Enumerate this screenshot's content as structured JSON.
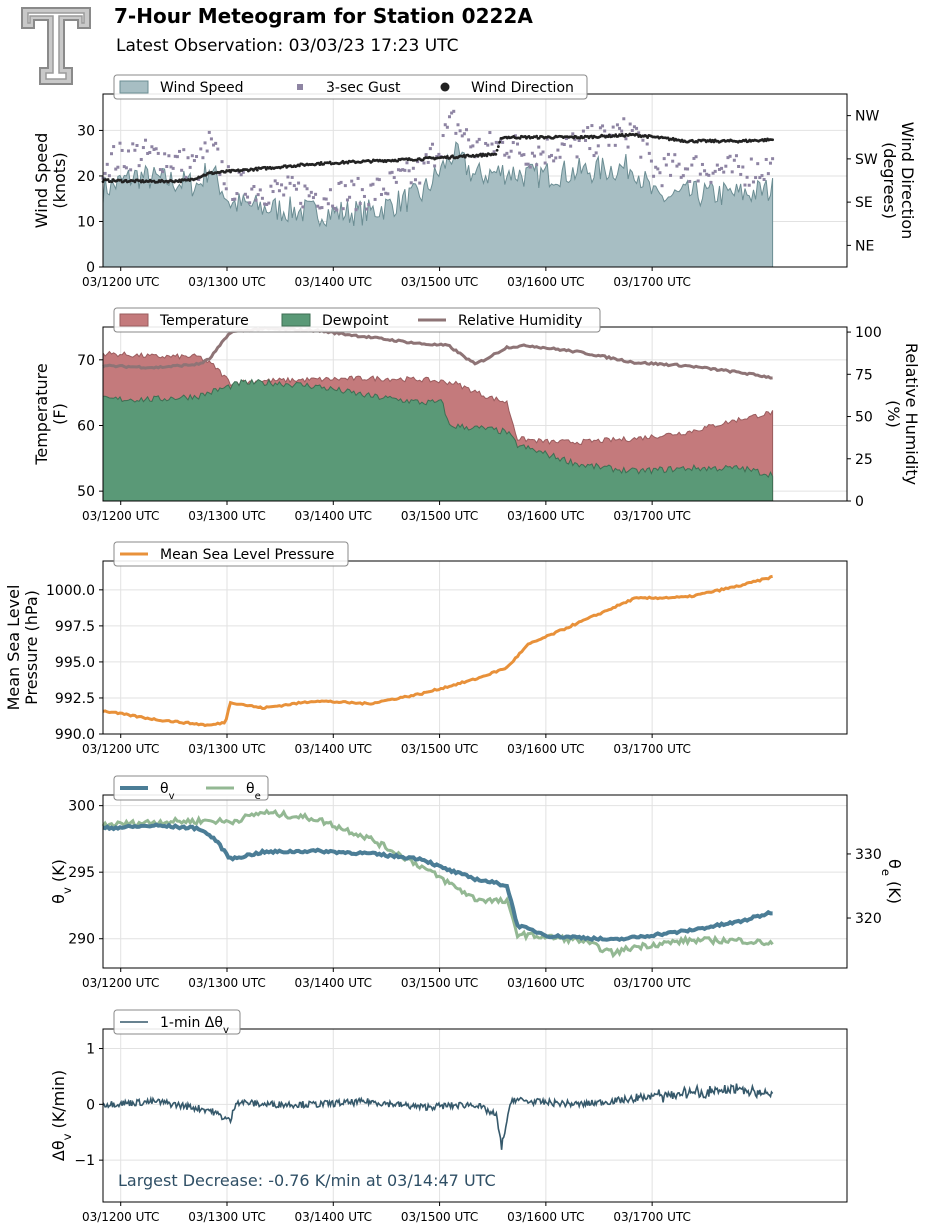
{
  "header": {
    "title": "7-Hour Meteogram for Station 0222A",
    "subtitle": "Latest Observation: 03/03/23 17:23 UTC",
    "logo_icon": "texas-tech-double-t-logo-icon"
  },
  "colors": {
    "wind_speed": "#a7bec3",
    "wind_speed_line": "#6b8d93",
    "gust": "#8e84a3",
    "wind_dir": "#222222",
    "temperature": "#c47a7c",
    "dewpoint": "#5a9977",
    "rh": "#8e7476",
    "pressure": "#e8913a",
    "theta_v": "#4b7d96",
    "theta_e": "#93b893",
    "dtheta": "#36596b",
    "annotation": "#2f4f65"
  },
  "chart_data": [
    {
      "id": "wind",
      "type": "area",
      "x_tick_labels": [
        "03/1200 UTC",
        "03/1300 UTC",
        "03/1400 UTC",
        "03/1500 UTC",
        "03/1600 UTC",
        "03/1700 UTC"
      ],
      "ylabel": "Wind Speed\n(knots)",
      "ylim": [
        0,
        38
      ],
      "yticks": [
        0,
        10,
        20,
        30
      ],
      "y2label": "Wind Direction\n(degrees)",
      "y2_tick_labels": [
        "NE",
        "SE",
        "SW",
        "NW"
      ],
      "y2lim": [
        0,
        360
      ],
      "y2ticks": [
        45,
        135,
        225,
        315
      ],
      "grid": true,
      "legend": [
        "Wind Speed",
        "3-sec Gust",
        "Wind Direction"
      ],
      "series": [
        {
          "name": "Wind Speed",
          "hours": [
            0,
            0.3,
            0.6,
            0.9,
            1.0,
            1.2,
            1.5,
            2.0,
            2.5,
            3.0,
            3.3,
            3.5,
            3.8,
            4.0,
            4.5,
            5.0,
            5.2,
            5.5,
            6.0,
            6.3
          ],
          "values": [
            17,
            20,
            19,
            18,
            22,
            14,
            13,
            12,
            12,
            16,
            25,
            20,
            21,
            20,
            21,
            22,
            15,
            16,
            16,
            17
          ]
        },
        {
          "name": "3-sec Gust",
          "hours": [
            0,
            0.3,
            0.6,
            0.9,
            1.0,
            1.2,
            1.5,
            2.0,
            2.5,
            3.0,
            3.3,
            3.5,
            3.8,
            4.0,
            4.5,
            5.0,
            5.2,
            5.5,
            6.0,
            6.3
          ],
          "values": [
            23,
            25,
            24,
            22,
            27,
            18,
            17,
            16,
            16,
            21,
            32,
            26,
            27,
            25,
            27,
            30,
            21,
            22,
            21,
            22
          ]
        },
        {
          "name": "Wind Direction",
          "hours": [
            0,
            0.5,
            0.8,
            1.0,
            1.5,
            2.0,
            2.5,
            3.0,
            3.5,
            3.7,
            3.75,
            4.0,
            4.5,
            5.0,
            5.5,
            6.0,
            6.3
          ],
          "values": [
            180,
            178,
            180,
            195,
            205,
            215,
            220,
            225,
            232,
            235,
            270,
            270,
            270,
            275,
            262,
            262,
            265
          ]
        }
      ]
    },
    {
      "id": "thermo",
      "type": "area",
      "x_tick_labels": [
        "03/1200 UTC",
        "03/1300 UTC",
        "03/1400 UTC",
        "03/1500 UTC",
        "03/1600 UTC",
        "03/1700 UTC"
      ],
      "ylabel": "Temperature\n(F)",
      "ylim": [
        48.5,
        75
      ],
      "yticks": [
        50,
        60,
        70
      ],
      "y2label": "Relative Humidity\n(%)",
      "y2lim": [
        0,
        103
      ],
      "y2ticks": [
        0,
        25,
        50,
        75,
        100
      ],
      "grid": true,
      "legend": [
        "Temperature",
        "Dewpoint",
        "Relative Humidity"
      ],
      "series": [
        {
          "name": "Temperature",
          "hours": [
            0,
            0.5,
            0.9,
            1.05,
            1.2,
            1.5,
            2.0,
            2.5,
            3.0,
            3.3,
            3.6,
            3.8,
            3.9,
            4.2,
            4.5,
            5.0,
            5.5,
            6.0,
            6.3
          ],
          "values": [
            71,
            70.5,
            70.5,
            69,
            66.5,
            66.8,
            67,
            67.2,
            67,
            66.5,
            64.5,
            63.5,
            58,
            57.5,
            57.5,
            58,
            59,
            61,
            62
          ]
        },
        {
          "name": "Dewpoint",
          "hours": [
            0,
            0.5,
            0.9,
            1.1,
            1.3,
            1.6,
            2.0,
            2.5,
            3.0,
            3.2,
            3.25,
            3.6,
            3.8,
            3.9,
            4.2,
            4.5,
            5.0,
            5.5,
            6.0,
            6.3
          ],
          "values": [
            64,
            64,
            64.5,
            65.5,
            66.5,
            66.5,
            66,
            64.5,
            63.5,
            63.5,
            60,
            59.5,
            59,
            57,
            55.5,
            54,
            53,
            53.5,
            53.5,
            52.5
          ]
        },
        {
          "name": "Relative Humidity",
          "hours": [
            0,
            0.5,
            0.9,
            1.0,
            1.2,
            1.5,
            2.0,
            2.5,
            3.0,
            3.25,
            3.5,
            3.6,
            3.8,
            4.0,
            4.5,
            5.0,
            5.5,
            6.0,
            6.3
          ],
          "values": [
            80,
            79,
            81,
            84,
            100,
            102,
            101,
            97,
            93,
            92,
            81,
            84,
            91,
            92,
            88,
            82,
            80,
            76,
            73
          ]
        }
      ]
    },
    {
      "id": "pressure",
      "type": "line",
      "x_tick_labels": [
        "03/1200 UTC",
        "03/1300 UTC",
        "03/1400 UTC",
        "03/1500 UTC",
        "03/1600 UTC",
        "03/1700 UTC"
      ],
      "ylabel": "Mean Sea Level\nPressure (hPa)",
      "ylim": [
        990,
        1002
      ],
      "yticks": [
        "990.0",
        "992.5",
        "995.0",
        "997.5",
        "1000.0"
      ],
      "grid": true,
      "legend": [
        "Mean Sea Level Pressure"
      ],
      "series": [
        {
          "name": "Mean Sea Level Pressure",
          "hours": [
            0,
            0.5,
            1.0,
            1.15,
            1.2,
            1.5,
            2.0,
            2.5,
            3.0,
            3.5,
            3.8,
            4.0,
            4.5,
            5.0,
            5.5,
            6.0,
            6.3
          ],
          "values": [
            991.6,
            991.0,
            990.6,
            990.8,
            992.2,
            991.8,
            992.3,
            992.1,
            992.8,
            993.8,
            994.6,
            996.2,
            997.8,
            999.4,
            999.5,
            1000.3,
            1000.9
          ]
        }
      ]
    },
    {
      "id": "theta",
      "type": "line",
      "x_tick_labels": [
        "03/1200 UTC",
        "03/1300 UTC",
        "03/1400 UTC",
        "03/1500 UTC",
        "03/1600 UTC",
        "03/1700 UTC"
      ],
      "ylabel": "θv (K)",
      "ylim": [
        287.8,
        300.8
      ],
      "yticks": [
        290,
        295,
        300
      ],
      "y2label": "θe (K)",
      "y2lim": [
        312.2,
        339.2
      ],
      "y2ticks": [
        320,
        330
      ],
      "grid": true,
      "legend": [
        "θv",
        "θe"
      ],
      "series": [
        {
          "name": "θv",
          "hours": [
            0,
            0.5,
            0.9,
            1.05,
            1.2,
            1.5,
            2.0,
            2.5,
            3.0,
            3.2,
            3.5,
            3.8,
            3.9,
            4.2,
            4.5,
            4.8,
            5.0,
            5.5,
            6.0,
            6.3
          ],
          "values": [
            298.3,
            298.5,
            298.3,
            297.5,
            296.0,
            296.5,
            296.6,
            296.4,
            296.0,
            295.3,
            294.5,
            294.0,
            291.0,
            290.2,
            290.1,
            289.9,
            290.1,
            290.6,
            291.3,
            292.0
          ]
        },
        {
          "name": "θe",
          "hours": [
            0,
            0.5,
            1.0,
            1.2,
            1.5,
            2.0,
            2.5,
            3.0,
            3.25,
            3.5,
            3.8,
            3.9,
            4.2,
            4.5,
            4.8,
            5.0,
            5.5,
            6.0,
            6.3
          ],
          "values": [
            334.5,
            335.0,
            335.2,
            335.0,
            336.5,
            335.5,
            332.5,
            328.0,
            325.5,
            323.0,
            322.5,
            317.5,
            317.0,
            316.5,
            314.5,
            315.5,
            316.5,
            316.5,
            316.0
          ]
        }
      ]
    },
    {
      "id": "dtheta",
      "type": "line",
      "x_tick_labels": [
        "03/1200 UTC",
        "03/1300 UTC",
        "03/1400 UTC",
        "03/1500 UTC",
        "03/1600 UTC",
        "03/1700 UTC"
      ],
      "ylabel": "Δθv (K/min)",
      "ylim": [
        -1.75,
        1.35
      ],
      "yticks": [
        -1,
        0,
        1
      ],
      "grid": true,
      "legend": [
        "1-min Δθv"
      ],
      "annotation": "Largest Decrease: -0.76 K/min at 03/14:47 UTC",
      "series": [
        {
          "name": "1-min Δθv",
          "hours": [
            0,
            0.5,
            1.0,
            1.2,
            1.25,
            1.5,
            2.0,
            2.5,
            3.0,
            3.5,
            3.7,
            3.75,
            3.8,
            3.85,
            4.0,
            4.5,
            5.0,
            5.5,
            6.0,
            6.3
          ],
          "values": [
            0.0,
            0.05,
            -0.1,
            -0.3,
            0.05,
            0.0,
            0.0,
            0.05,
            -0.05,
            0.0,
            -0.2,
            -0.76,
            -0.3,
            0.1,
            0.05,
            0.0,
            0.1,
            0.2,
            0.25,
            0.2
          ]
        }
      ]
    }
  ]
}
